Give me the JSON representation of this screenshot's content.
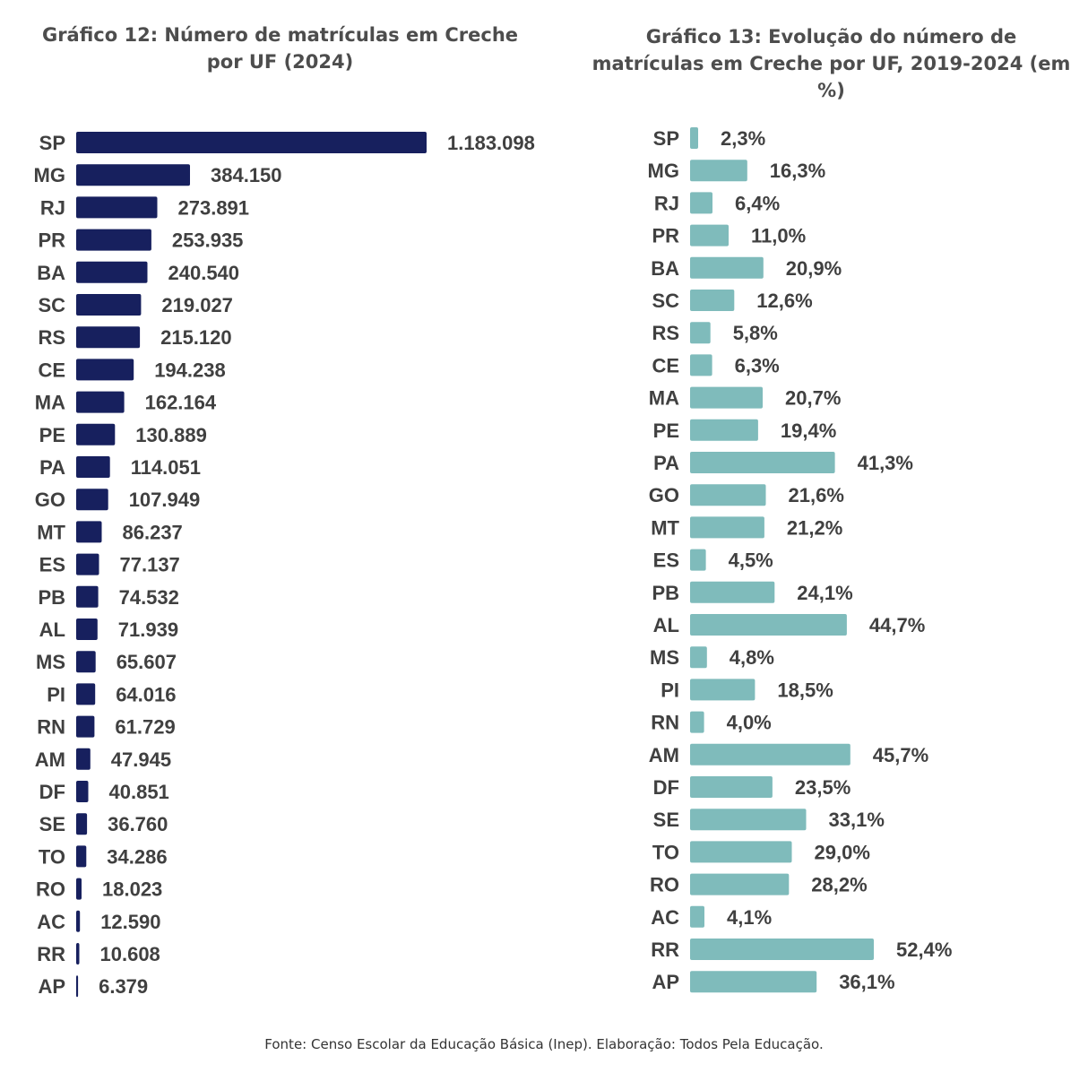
{
  "chart_data": [
    {
      "type": "bar",
      "orientation": "horizontal",
      "title": "Gráfico 12: Número de matrículas em Creche por UF (2024)",
      "categories": [
        "SP",
        "MG",
        "RJ",
        "PR",
        "BA",
        "SC",
        "RS",
        "CE",
        "MA",
        "PE",
        "PA",
        "GO",
        "MT",
        "ES",
        "PB",
        "AL",
        "MS",
        "PI",
        "RN",
        "AM",
        "DF",
        "SE",
        "TO",
        "RO",
        "AC",
        "RR",
        "AP"
      ],
      "values": [
        1183098,
        384150,
        273891,
        253935,
        240540,
        219027,
        215120,
        194238,
        162164,
        130889,
        114051,
        107949,
        86237,
        77137,
        74532,
        71939,
        65607,
        64016,
        61729,
        47945,
        40851,
        36760,
        34286,
        18023,
        12590,
        10608,
        6379
      ],
      "labels": [
        "1.183.098",
        "384.150",
        "273.891",
        "253.935",
        "240.540",
        "219.027",
        "215.120",
        "194.238",
        "162.164",
        "130.889",
        "114.051",
        "107.949",
        "86.237",
        "77.137",
        "74.532",
        "71.939",
        "65.607",
        "64.016",
        "61.729",
        "47.945",
        "40.851",
        "36.760",
        "34.286",
        "18.023",
        "12.590",
        "10.608",
        "6.379"
      ],
      "xlim": [
        0,
        1183098
      ],
      "grid": false,
      "color": "#17205e"
    },
    {
      "type": "bar",
      "orientation": "horizontal",
      "title": "Gráfico 13: Evolução do número de matrículas em Creche por UF, 2019-2024 (em %)",
      "categories": [
        "SP",
        "MG",
        "RJ",
        "PR",
        "BA",
        "SC",
        "RS",
        "CE",
        "MA",
        "PE",
        "PA",
        "GO",
        "MT",
        "ES",
        "PB",
        "AL",
        "MS",
        "PI",
        "RN",
        "AM",
        "DF",
        "SE",
        "TO",
        "RO",
        "AC",
        "RR",
        "AP"
      ],
      "values": [
        2.3,
        16.3,
        6.4,
        11.0,
        20.9,
        12.6,
        5.8,
        6.3,
        20.7,
        19.4,
        41.3,
        21.6,
        21.2,
        4.5,
        24.1,
        44.7,
        4.8,
        18.5,
        4.0,
        45.7,
        23.5,
        33.1,
        29.0,
        28.2,
        4.1,
        52.4,
        36.1
      ],
      "labels": [
        "2,3%",
        "16,3%",
        "6,4%",
        "11,0%",
        "20,9%",
        "12,6%",
        "5,8%",
        "6,3%",
        "20,7%",
        "19,4%",
        "41,3%",
        "21,6%",
        "21,2%",
        "4,5%",
        "24,1%",
        "44,7%",
        "4,8%",
        "18,5%",
        "4,0%",
        "45,7%",
        "23,5%",
        "33,1%",
        "29,0%",
        "28,2%",
        "4,1%",
        "52,4%",
        "36,1%"
      ],
      "xlim": [
        0,
        52.4
      ],
      "grid": false,
      "color": "#7fbbbb"
    }
  ],
  "footer": {
    "source": "Fonte: Censo Escolar da Educação Básica (Inep). Elaboração: Todos Pela Educação."
  }
}
